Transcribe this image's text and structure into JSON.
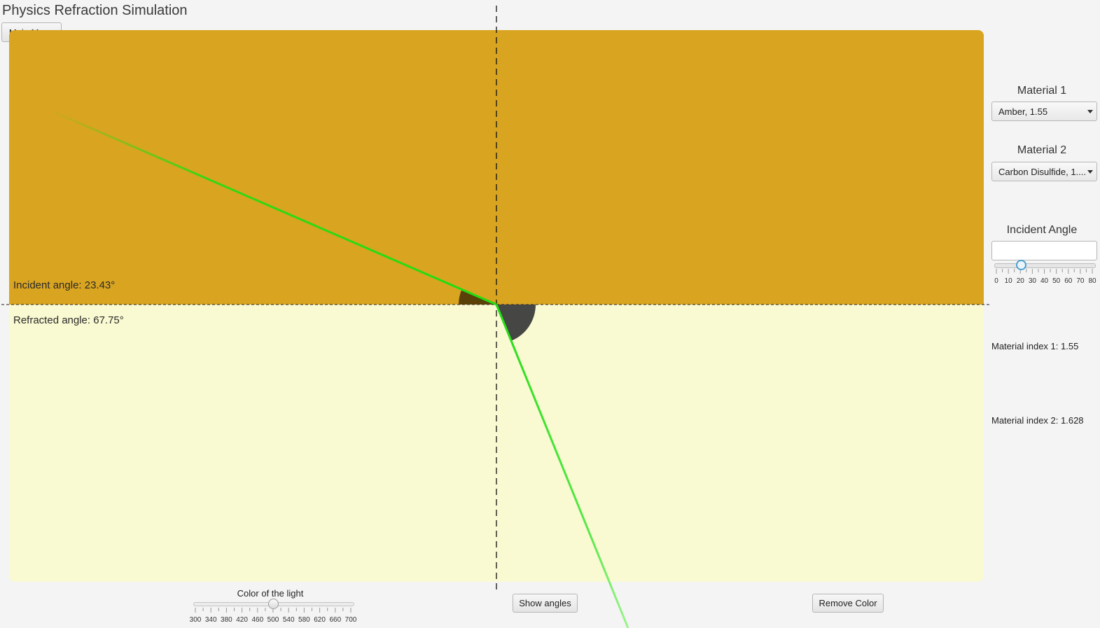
{
  "window": {
    "title": "Physics Refraction Simulation"
  },
  "toolbar": {
    "main_menu_label": "Main Menu"
  },
  "simulation": {
    "incident_label": "Incident angle: 23.43°",
    "refracted_label": "Refracted angle: 67.75°",
    "material1_color": "#d9a420",
    "material2_color": "#f9f9d2",
    "ray_color": "#22dd11"
  },
  "controls": {
    "material1": {
      "heading": "Material 1",
      "selected": "Amber, 1.55"
    },
    "material2": {
      "heading": "Material 2",
      "selected": "Carbon Disulfide, 1...."
    },
    "incident_angle": {
      "heading": "Incident Angle",
      "value": "",
      "slider_value": 23.43,
      "min": 0,
      "max": 90,
      "tick_labels": [
        "0",
        "10",
        "20",
        "30",
        "40",
        "50",
        "60",
        "70",
        "80"
      ]
    },
    "material_index1": "Material index 1: 1.55",
    "material_index2": "Material index 2: 1.628"
  },
  "bottom_bar": {
    "color_slider": {
      "label": "Color of the light",
      "value_nm": 500,
      "min": 300,
      "max": 700,
      "tick_labels": [
        "300",
        "340",
        "380",
        "420",
        "460",
        "500",
        "540",
        "580",
        "620",
        "660",
        "700"
      ]
    },
    "show_angles_label": "Show angles",
    "remove_color_label": "Remove Color"
  }
}
